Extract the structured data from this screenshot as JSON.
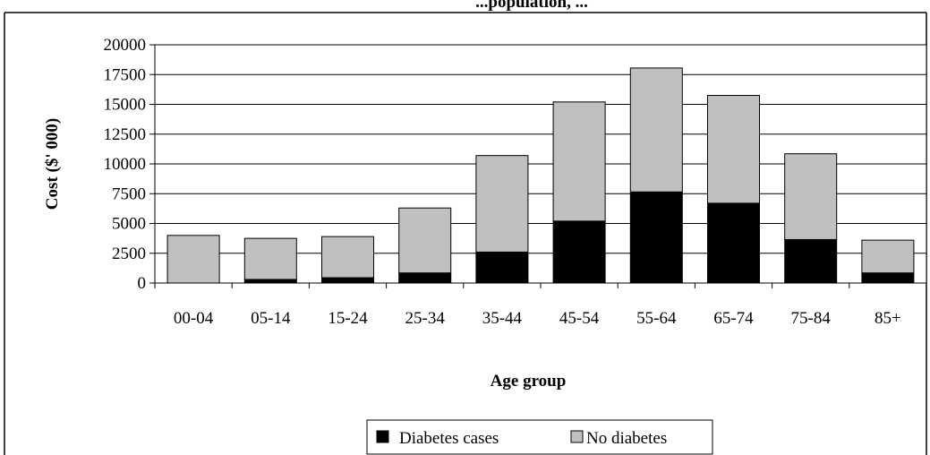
{
  "chart_data": {
    "type": "bar",
    "stacked": true,
    "title": "...population, ...",
    "xlabel": "Age group",
    "ylabel": "Cost ($' 000)",
    "categories": [
      "00-04",
      "05-14",
      "15-24",
      "25-34",
      "35-44",
      "45-54",
      "55-64",
      "65-74",
      "75-84",
      "85+"
    ],
    "series": [
      {
        "name": "Diabetes cases",
        "color": "#000000",
        "values": [
          0,
          300,
          450,
          850,
          2600,
          5200,
          7650,
          6700,
          3650,
          850
        ]
      },
      {
        "name": "No diabetes",
        "color": "#c0c0c0",
        "values": [
          4000,
          3450,
          3450,
          5450,
          8100,
          10000,
          10400,
          9050,
          7200,
          2750
        ]
      }
    ],
    "ylim": [
      0,
      20000
    ],
    "yticks": [
      "0",
      "2500",
      "5000",
      "7500",
      "10000",
      "12500",
      "15000",
      "17500",
      "20000"
    ],
    "grid": true,
    "legend": "bottom"
  }
}
